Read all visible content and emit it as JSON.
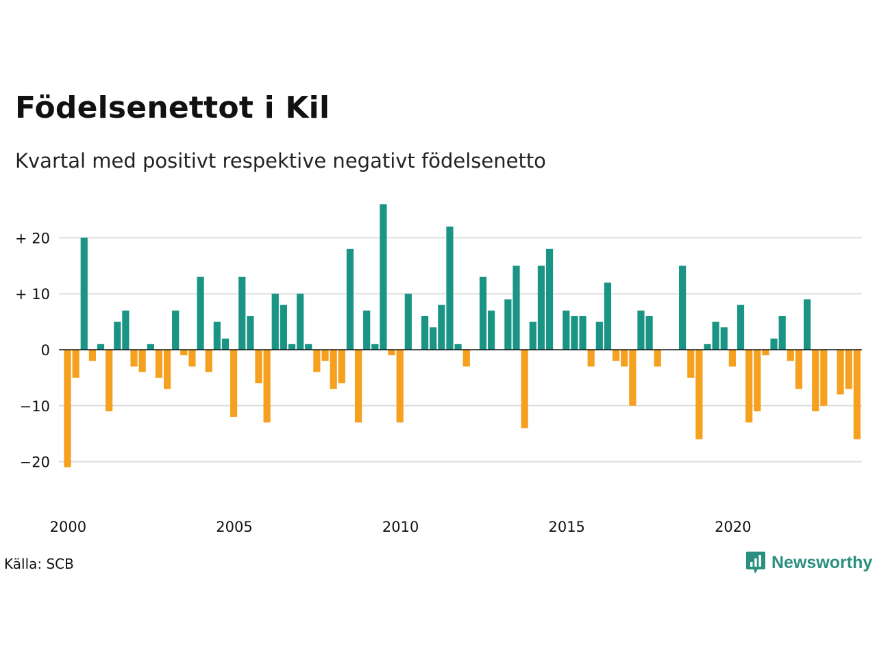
{
  "title": "Födelsenettot i Kil",
  "subtitle": "Kvartal med positivt respektive negativt födelsenetto",
  "source": "Källa: SCB",
  "brand": {
    "name": "Newsworthy",
    "icon": "newsworthy-logo-icon",
    "color": "#2b8f7f"
  },
  "colors": {
    "positive": "#1a9484",
    "negative": "#f5a01f",
    "grid": "#dddddd",
    "zero_line": "#111111"
  },
  "chart_data": {
    "type": "bar",
    "title": "Födelsenettot i Kil",
    "subtitle": "Kvartal med positivt respektive negativt födelsenetto",
    "xlabel": "",
    "ylabel": "",
    "ylim": [
      -25,
      28
    ],
    "yticks": [
      20,
      10,
      0,
      -10,
      -20
    ],
    "ytick_labels": [
      "+ 20",
      "+ 10",
      "0",
      "−10",
      "−20"
    ],
    "xticks": [
      2000,
      2005,
      2010,
      2015,
      2020
    ],
    "xtick_labels": [
      "2000",
      "2005",
      "2010",
      "2015",
      "2020"
    ],
    "grid": true,
    "legend": "none",
    "start_year": 2000,
    "values": [
      -21,
      -5,
      20,
      -2,
      1,
      -11,
      5,
      7,
      -3,
      -4,
      1,
      -5,
      -7,
      7,
      -1,
      -3,
      13,
      -4,
      5,
      2,
      -12,
      13,
      6,
      -6,
      -13,
      10,
      8,
      1,
      10,
      1,
      -4,
      -2,
      -7,
      -6,
      18,
      -13,
      7,
      1,
      26,
      -1,
      -13,
      10,
      0,
      6,
      4,
      8,
      22,
      1,
      -3,
      0,
      13,
      7,
      0,
      9,
      15,
      -14,
      5,
      15,
      18,
      0,
      7,
      6,
      6,
      -3,
      5,
      12,
      -2,
      -3,
      -10,
      7,
      6,
      -3,
      0,
      0,
      15,
      -5,
      -16,
      1,
      5,
      4,
      -3,
      8,
      -13,
      -11,
      -1,
      2,
      6,
      -2,
      -7,
      9,
      -11,
      -10,
      0,
      -8,
      -7,
      -16
    ]
  }
}
